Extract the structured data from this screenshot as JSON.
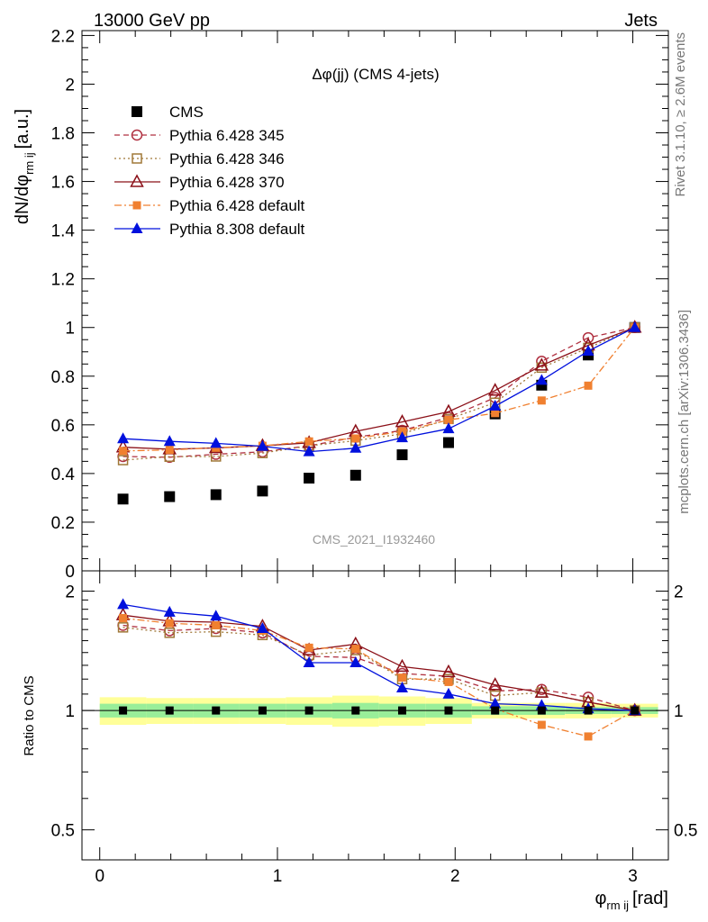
{
  "header": {
    "left": "13000 GeV pp",
    "right": "Jets"
  },
  "side_labels": {
    "top": "Rivet 3.1.10, ≥ 2.6M events",
    "bottom": "mcplots.cern.ch [arXiv:1306.3436]"
  },
  "chart_data": [
    {
      "type": "line",
      "title": "Δφ(jj) (CMS 4-jets)",
      "watermark": "CMS_2021_I1932460",
      "xlabel_main": "φ",
      "xlabel_sub": "rm ij",
      "xlabel_unit": "[rad]",
      "ylabel_main": "dN/dφ",
      "ylabel_sub": "rm ij",
      "ylabel_unit": "[a.u.]",
      "xlim": [
        -0.1,
        3.2
      ],
      "ylim": [
        0,
        2.22
      ],
      "y_ticks": [
        "0",
        "0.2",
        "0.4",
        "0.6",
        "0.8",
        "1",
        "1.2",
        "1.4",
        "1.6",
        "1.8",
        "2",
        "2.2"
      ],
      "x_ticks": [
        "0",
        "1",
        "2",
        "3"
      ],
      "legend_position": "top-left",
      "x": [
        0.131,
        0.393,
        0.654,
        0.916,
        1.178,
        1.44,
        1.702,
        1.963,
        2.225,
        2.487,
        2.749,
        3.011
      ],
      "series": [
        {
          "name": "CMS",
          "color": "#000000",
          "marker": "square-filled",
          "line": "none",
          "values": [
            0.295,
            0.305,
            0.313,
            0.328,
            0.381,
            0.393,
            0.477,
            0.527,
            0.645,
            0.763,
            0.887,
            1.0
          ]
        },
        {
          "name": "Pythia 6.428 345",
          "color": "#b03040",
          "marker": "circle-open",
          "line": "dashed",
          "values": [
            0.47,
            0.467,
            0.479,
            0.489,
            0.514,
            0.549,
            0.577,
            0.631,
            0.712,
            0.861,
            0.958,
            1.0
          ]
        },
        {
          "name": "Pythia 6.428 346",
          "color": "#a07838",
          "marker": "square-open",
          "line": "dotted",
          "values": [
            0.455,
            0.469,
            0.47,
            0.484,
            0.514,
            0.535,
            0.563,
            0.624,
            0.691,
            0.835,
            0.916,
            1.0
          ]
        },
        {
          "name": "Pythia 6.428 370",
          "color": "#8b1018",
          "marker": "triangle-open",
          "line": "solid",
          "values": [
            0.508,
            0.5,
            0.505,
            0.514,
            0.526,
            0.573,
            0.612,
            0.654,
            0.741,
            0.844,
            0.927,
            1.0
          ]
        },
        {
          "name": "Pythia 6.428 default",
          "color": "#f08030",
          "marker": "square-filled-small",
          "line": "dashdot",
          "values": [
            0.493,
            0.497,
            0.506,
            0.514,
            0.532,
            0.544,
            0.573,
            0.62,
            0.648,
            0.7,
            0.761,
            1.0
          ]
        },
        {
          "name": "Pythia 8.308 default",
          "color": "#0010dd",
          "marker": "triangle-filled",
          "line": "solid",
          "values": [
            0.543,
            0.532,
            0.524,
            0.512,
            0.49,
            0.504,
            0.547,
            0.584,
            0.677,
            0.783,
            0.903,
            1.0
          ]
        }
      ]
    },
    {
      "type": "line",
      "ylabel": "Ratio to CMS",
      "y_scale": "log",
      "ylim": [
        0.42,
        2.25
      ],
      "y_ticks": [
        "0.5",
        "1",
        "2"
      ],
      "x_ticks": [
        "0",
        "1",
        "2",
        "3"
      ],
      "reference_value": 1,
      "band_edges": [
        0,
        0.262,
        0.524,
        0.785,
        1.047,
        1.309,
        1.571,
        1.833,
        2.094,
        2.356,
        2.618,
        2.88,
        3.142
      ],
      "band_inner": [
        [
          0.96,
          1.04
        ],
        [
          0.96,
          1.04
        ],
        [
          0.96,
          1.04
        ],
        [
          0.96,
          1.04
        ],
        [
          0.96,
          1.04
        ],
        [
          0.955,
          1.045
        ],
        [
          0.96,
          1.04
        ],
        [
          0.96,
          1.04
        ],
        [
          0.975,
          1.025
        ],
        [
          0.975,
          1.025
        ],
        [
          0.98,
          1.02
        ],
        [
          0.98,
          1.02
        ]
      ],
      "band_outer": [
        [
          0.92,
          1.08
        ],
        [
          0.925,
          1.075
        ],
        [
          0.925,
          1.075
        ],
        [
          0.925,
          1.075
        ],
        [
          0.92,
          1.08
        ],
        [
          0.91,
          1.09
        ],
        [
          0.915,
          1.085
        ],
        [
          0.925,
          1.075
        ],
        [
          0.955,
          1.045
        ],
        [
          0.955,
          1.045
        ],
        [
          0.955,
          1.045
        ],
        [
          0.96,
          1.04
        ]
      ],
      "x": [
        0.131,
        0.393,
        0.654,
        0.916,
        1.178,
        1.44,
        1.702,
        1.963,
        2.225,
        2.487,
        2.749,
        3.011
      ],
      "series": [
        {
          "name": "Pythia 6.428 345",
          "color": "#b03040",
          "marker": "circle-open",
          "line": "dashed",
          "values": [
            1.64,
            1.59,
            1.61,
            1.57,
            1.37,
            1.36,
            1.24,
            1.22,
            1.12,
            1.13,
            1.08,
            1.0
          ]
        },
        {
          "name": "Pythia 6.428 346",
          "color": "#a07838",
          "marker": "square-open",
          "line": "dotted",
          "values": [
            1.62,
            1.57,
            1.58,
            1.55,
            1.38,
            1.42,
            1.2,
            1.2,
            1.09,
            1.11,
            1.05,
            1.0
          ]
        },
        {
          "name": "Pythia 6.428 370",
          "color": "#8b1018",
          "marker": "triangle-open",
          "line": "solid",
          "values": [
            1.74,
            1.68,
            1.67,
            1.63,
            1.42,
            1.47,
            1.29,
            1.25,
            1.16,
            1.11,
            1.05,
            1.0
          ]
        },
        {
          "name": "Pythia 6.428 default",
          "color": "#f08030",
          "marker": "square-filled-small",
          "line": "dashdot",
          "values": [
            1.71,
            1.66,
            1.64,
            1.59,
            1.44,
            1.43,
            1.21,
            1.18,
            1.01,
            0.92,
            0.86,
            1.0
          ]
        },
        {
          "name": "Pythia 8.308 default",
          "color": "#0010dd",
          "marker": "triangle-filled",
          "line": "solid",
          "values": [
            1.85,
            1.77,
            1.73,
            1.61,
            1.32,
            1.32,
            1.14,
            1.1,
            1.04,
            1.03,
            1.01,
            1.0
          ]
        }
      ]
    }
  ]
}
